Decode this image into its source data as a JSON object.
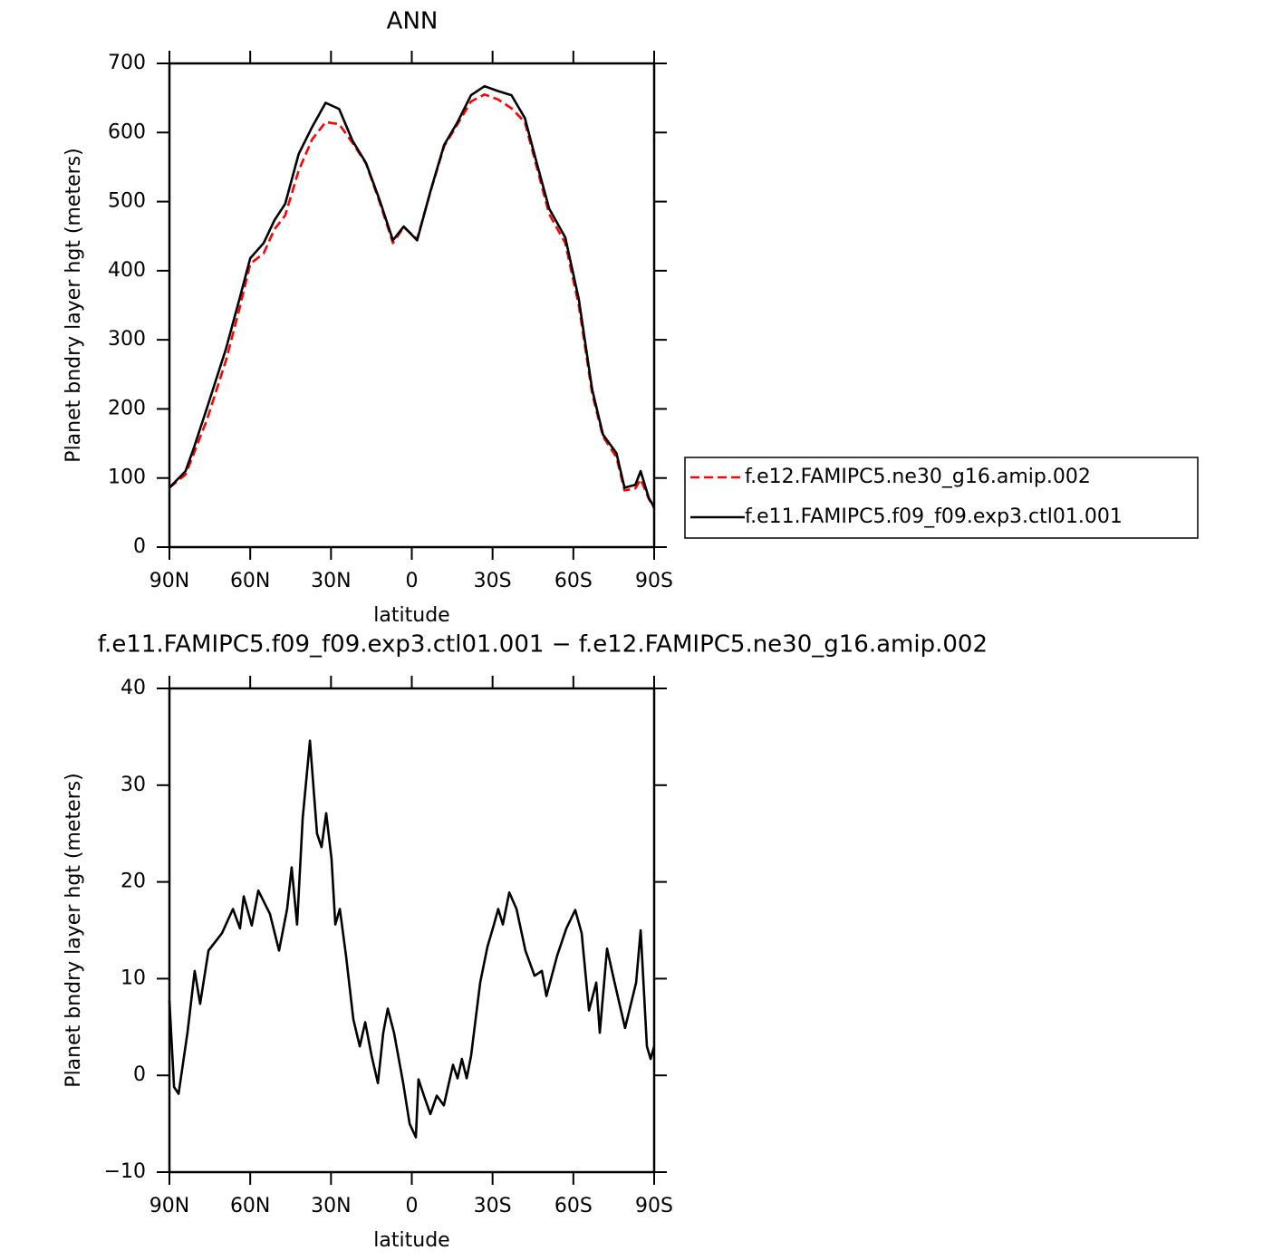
{
  "chart_data": [
    {
      "type": "line",
      "title": "ANN",
      "xlabel": "latitude",
      "ylabel": "Planet bndry layer hgt (meters)",
      "xlim": [
        90,
        -90
      ],
      "ylim": [
        0,
        700
      ],
      "xticks": [
        {
          "value": 90,
          "label": "90N"
        },
        {
          "value": 60,
          "label": "60N"
        },
        {
          "value": 30,
          "label": "30N"
        },
        0,
        {
          "value": -30,
          "label": "30S"
        },
        {
          "value": -60,
          "label": "60S"
        },
        {
          "value": -90,
          "label": "90S"
        }
      ],
      "yticks": [
        0,
        100,
        200,
        300,
        400,
        500,
        600,
        700
      ],
      "legend_position": "right",
      "x": [
        90,
        84,
        81,
        76,
        69,
        64,
        60,
        55,
        51,
        47,
        42,
        37,
        32,
        27,
        22,
        17,
        12,
        7,
        3,
        -2,
        -7,
        -12,
        -17,
        -22,
        -27,
        -32,
        -37,
        -42,
        -46,
        -51,
        -57,
        -62,
        -67,
        -71,
        -76,
        -79,
        -83,
        -85,
        -88,
        -90
      ],
      "series": [
        {
          "name": "f.e12.FAMIPC5.ne30_g16.amip.002",
          "color": "#ff0000",
          "dashed": true,
          "values": [
            86,
            105,
            135,
            185,
            270,
            345,
            410,
            425,
            460,
            480,
            545,
            590,
            615,
            612,
            585,
            555,
            500,
            440,
            463,
            446,
            515,
            580,
            612,
            645,
            655,
            648,
            635,
            615,
            556,
            482,
            440,
            350,
            222,
            160,
            130,
            82,
            85,
            98,
            70,
            56
          ]
        },
        {
          "name": "f.e11.FAMIPC5.f09_f09.exp3.ctl01.001",
          "color": "#000000",
          "dashed": false,
          "values": [
            86,
            110,
            143,
            202,
            287,
            359,
            418,
            440,
            473,
            497,
            569,
            608,
            643,
            634,
            588,
            556,
            503,
            444,
            464,
            444,
            516,
            582,
            615,
            654,
            667,
            660,
            654,
            621,
            562,
            490,
            448,
            359,
            228,
            163,
            136,
            86,
            90,
            110,
            71,
            58
          ]
        }
      ]
    },
    {
      "type": "line",
      "title": "f.e11.FAMIPC5.f09_f09.exp3.ctl01.001 − f.e12.FAMIPC5.ne30_g16.amip.002",
      "xlabel": "latitude",
      "ylabel": "Planet bndry layer hgt (meters)",
      "xlim": [
        90,
        -90
      ],
      "ylim": [
        -10,
        40
      ],
      "xticks": [
        {
          "value": 90,
          "label": "90N"
        },
        {
          "value": 60,
          "label": "60N"
        },
        {
          "value": 30,
          "label": "30N"
        },
        0,
        {
          "value": -30,
          "label": "30S"
        },
        {
          "value": -60,
          "label": "60S"
        },
        {
          "value": -90,
          "label": "90S"
        }
      ],
      "yticks": [
        {
          "value": -10,
          "label": "−10"
        },
        0,
        10,
        20,
        30,
        40
      ],
      "x": [
        90,
        88.3,
        86.6,
        83.3,
        80.6,
        78.6,
        75.5,
        70.5,
        66.4,
        63.8,
        62.4,
        59.4,
        57,
        52.7,
        49.3,
        46.3,
        44.6,
        42.6,
        40.5,
        37.8,
        35.2,
        33.5,
        31.8,
        29.8,
        28.4,
        26.7,
        24.4,
        21.7,
        19.3,
        17.3,
        14.9,
        12.6,
        10.6,
        8.9,
        6.6,
        3.2,
        0.8,
        -1.5,
        -2.5,
        -4.5,
        -6.9,
        -9.3,
        -11.9,
        -15.3,
        -17,
        -18.6,
        -20.4,
        -22,
        -25.4,
        -28.1,
        -30.5,
        -32.1,
        -33.8,
        -36.2,
        -38.9,
        -42.2,
        -45.6,
        -48.3,
        -50,
        -54,
        -57.4,
        -60.7,
        -63.1,
        -65.8,
        -68.5,
        -69.8,
        -72.5,
        -74.9,
        -79.2,
        -83.3,
        -85,
        -87.3,
        -88.7,
        -90
      ],
      "series": [
        {
          "color": "#000000",
          "dashed": false,
          "values": [
            7.7,
            -1.2,
            -1.9,
            4.4,
            10.8,
            7.4,
            12.9,
            14.7,
            17.2,
            15.2,
            18.5,
            15.5,
            19.1,
            16.7,
            12.9,
            17.2,
            21.5,
            15.6,
            26.6,
            34.6,
            25.0,
            23.6,
            27.1,
            22.4,
            15.6,
            17.2,
            12.3,
            5.8,
            3.0,
            5.5,
            2.0,
            -0.8,
            4.4,
            6.9,
            4.4,
            -0.8,
            -5.0,
            -6.4,
            -0.4,
            -2.1,
            -4.0,
            -2.1,
            -3.1,
            1.1,
            -0.3,
            1.7,
            -0.3,
            2.0,
            9.6,
            13.3,
            15.6,
            17.2,
            15.6,
            18.9,
            17.2,
            12.9,
            10.3,
            10.8,
            8.2,
            12.4,
            15.2,
            17.1,
            14.7,
            6.7,
            9.6,
            4.4,
            13.1,
            10.1,
            4.9,
            9.6,
            15.0,
            3.0,
            1.7,
            3.0
          ]
        }
      ]
    }
  ]
}
